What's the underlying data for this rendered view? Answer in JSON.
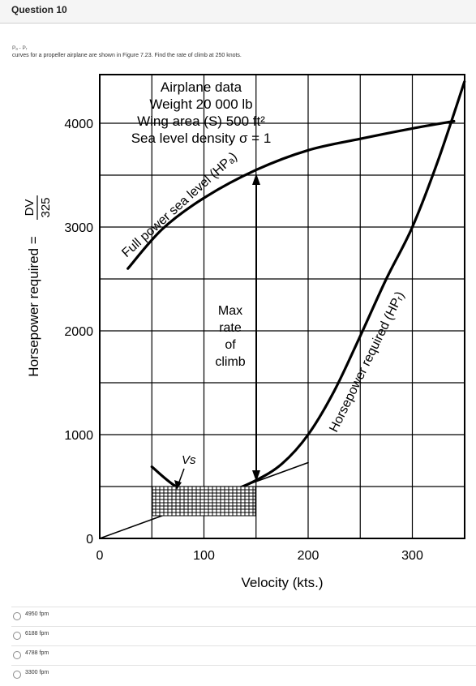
{
  "question": {
    "title": "Question 10",
    "symbol_line": "Pₐ - Pᵣ",
    "text": "curves for a propeller airplane are shown in Figure 7.23. Find the rate of climb at 250 knots."
  },
  "figure": {
    "airplane_data": [
      "Airplane data",
      "Weight 20 000 lb",
      "Wing area (S) 500 ft²",
      "Sea level density σ = 1"
    ],
    "ylabel": "Horsepower required =",
    "ylabel_frac_num": "DV",
    "ylabel_frac_den": "325",
    "xlabel": "Velocity (kts.)",
    "available_curve_label": "Full power sea level (HPₐ)",
    "required_curve_label": "Horsepower required (HPᵣ)",
    "max_rate_label": [
      "Max",
      "rate",
      "of",
      "climb"
    ],
    "vs_label": "Vs"
  },
  "chart_data": {
    "type": "line",
    "xlabel": "Velocity (kts.)",
    "ylabel": "Horsepower required = DV/325",
    "xlim": [
      0,
      350
    ],
    "ylim": [
      0,
      4000
    ],
    "x_ticks": [
      0,
      100,
      200,
      300
    ],
    "y_ticks": [
      0,
      1000,
      2000,
      3000,
      4000
    ],
    "grid": true,
    "series": [
      {
        "name": "Full power sea level (HPa)",
        "x": [
          27,
          60,
          100,
          150,
          200,
          250,
          300,
          340
        ],
        "y": [
          2600,
          2980,
          3280,
          3550,
          3740,
          3850,
          3950,
          4020
        ]
      },
      {
        "name": "Horsepower required (HPr)",
        "x": [
          50,
          75,
          100,
          125,
          150,
          175,
          200,
          225,
          250,
          275,
          300,
          325,
          350
        ],
        "y": [
          690,
          490,
          440,
          460,
          560,
          720,
          1000,
          1420,
          1950,
          2500,
          3000,
          3650,
          4400
        ]
      },
      {
        "name": "",
        "x": [
          0,
          200
        ],
        "y": [
          0,
          730
        ]
      }
    ],
    "annotations": [
      "Max rate of climb",
      "Vs"
    ]
  },
  "options": [
    {
      "label": "4950 fpm"
    },
    {
      "label": "6188 fpm"
    },
    {
      "label": "4788 fpm"
    },
    {
      "label": "3300 fpm"
    }
  ]
}
